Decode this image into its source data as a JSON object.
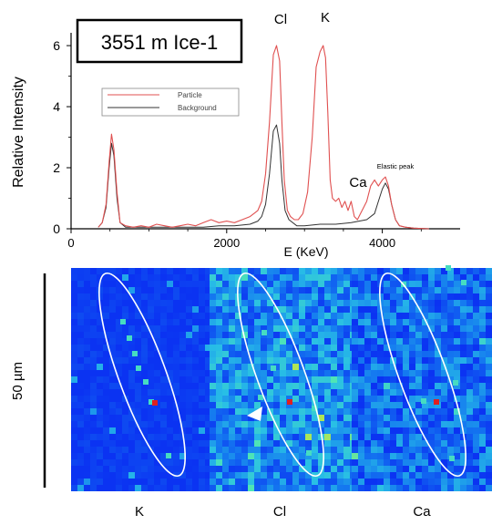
{
  "sample_label": "3551 m Ice-1",
  "chart_data": [
    {
      "type": "line",
      "xlabel": "E (KeV)",
      "ylabel": "Relative Intensity",
      "xlim": [
        0,
        5000
      ],
      "ylim": [
        0,
        6.3
      ],
      "x_ticks": [
        "0",
        "2000",
        "4000"
      ],
      "y_ticks": [
        "0",
        "2",
        "4",
        "6"
      ],
      "legend": {
        "position": "top-left"
      },
      "annotations": [
        "Cl",
        "K",
        "Ca",
        "Elastic peak"
      ],
      "series": [
        {
          "name": "Particle",
          "color": "#e05050",
          "x": [
            350,
            400,
            450,
            490,
            520,
            550,
            590,
            630,
            700,
            800,
            900,
            1000,
            1100,
            1200,
            1300,
            1400,
            1500,
            1600,
            1700,
            1800,
            1900,
            2000,
            2100,
            2200,
            2300,
            2350,
            2400,
            2450,
            2500,
            2550,
            2600,
            2640,
            2680,
            2710,
            2740,
            2780,
            2820,
            2870,
            2920,
            2980,
            3040,
            3100,
            3150,
            3200,
            3240,
            3270,
            3300,
            3330,
            3360,
            3400,
            3440,
            3480,
            3520,
            3560,
            3600,
            3640,
            3680,
            3720,
            3760,
            3800,
            3850,
            3900,
            3950,
            4000,
            4040,
            4080,
            4120,
            4170,
            4220,
            4300,
            4400,
            4600
          ],
          "y": [
            0.05,
            0.2,
            0.8,
            2.2,
            3.1,
            2.6,
            1.2,
            0.2,
            0.1,
            0.05,
            0.1,
            0.05,
            0.15,
            0.1,
            0.05,
            0.1,
            0.15,
            0.1,
            0.2,
            0.3,
            0.2,
            0.25,
            0.2,
            0.3,
            0.4,
            0.5,
            0.6,
            0.9,
            1.8,
            3.5,
            5.7,
            6.0,
            5.5,
            3.5,
            1.6,
            0.6,
            0.4,
            0.3,
            0.3,
            0.5,
            1.2,
            3.0,
            5.3,
            5.8,
            6.0,
            5.6,
            3.8,
            1.6,
            1.0,
            0.9,
            1.0,
            0.7,
            0.9,
            0.6,
            0.9,
            0.4,
            0.3,
            0.5,
            0.7,
            0.9,
            1.4,
            1.6,
            1.4,
            1.6,
            1.7,
            1.4,
            0.8,
            0.3,
            0.1,
            0.05,
            0.02,
            0.0
          ]
        },
        {
          "name": "Background",
          "color": "#333333",
          "x": [
            350,
            400,
            450,
            490,
            520,
            550,
            590,
            630,
            700,
            900,
            1100,
            1300,
            1500,
            1700,
            1900,
            2100,
            2300,
            2400,
            2450,
            2500,
            2550,
            2600,
            2640,
            2680,
            2710,
            2750,
            2800,
            2900,
            3000,
            3200,
            3400,
            3600,
            3800,
            3900,
            3950,
            4000,
            4040,
            4080,
            4120,
            4170,
            4220,
            4300,
            4400,
            4600
          ],
          "y": [
            0.05,
            0.2,
            0.7,
            2.0,
            2.8,
            2.4,
            1.0,
            0.2,
            0.05,
            0.05,
            0.05,
            0.05,
            0.05,
            0.05,
            0.1,
            0.1,
            0.15,
            0.25,
            0.4,
            0.8,
            1.8,
            3.2,
            3.4,
            2.8,
            1.6,
            0.6,
            0.3,
            0.1,
            0.1,
            0.15,
            0.15,
            0.2,
            0.3,
            0.5,
            0.9,
            1.3,
            1.5,
            1.3,
            0.8,
            0.3,
            0.1,
            0.05,
            0.02,
            0.0
          ]
        }
      ]
    },
    {
      "type": "heatmap",
      "panels": [
        {
          "label": "K",
          "base_color": "#0b33f2"
        },
        {
          "label": "Cl",
          "base_color": "#2aa0e6"
        },
        {
          "label": "Ca",
          "base_color": "#1e4fd6"
        }
      ],
      "scale_bar_label": "50 µm",
      "annotations": [
        "white outline marks the particle",
        "white arrow in Cl panel"
      ]
    }
  ]
}
